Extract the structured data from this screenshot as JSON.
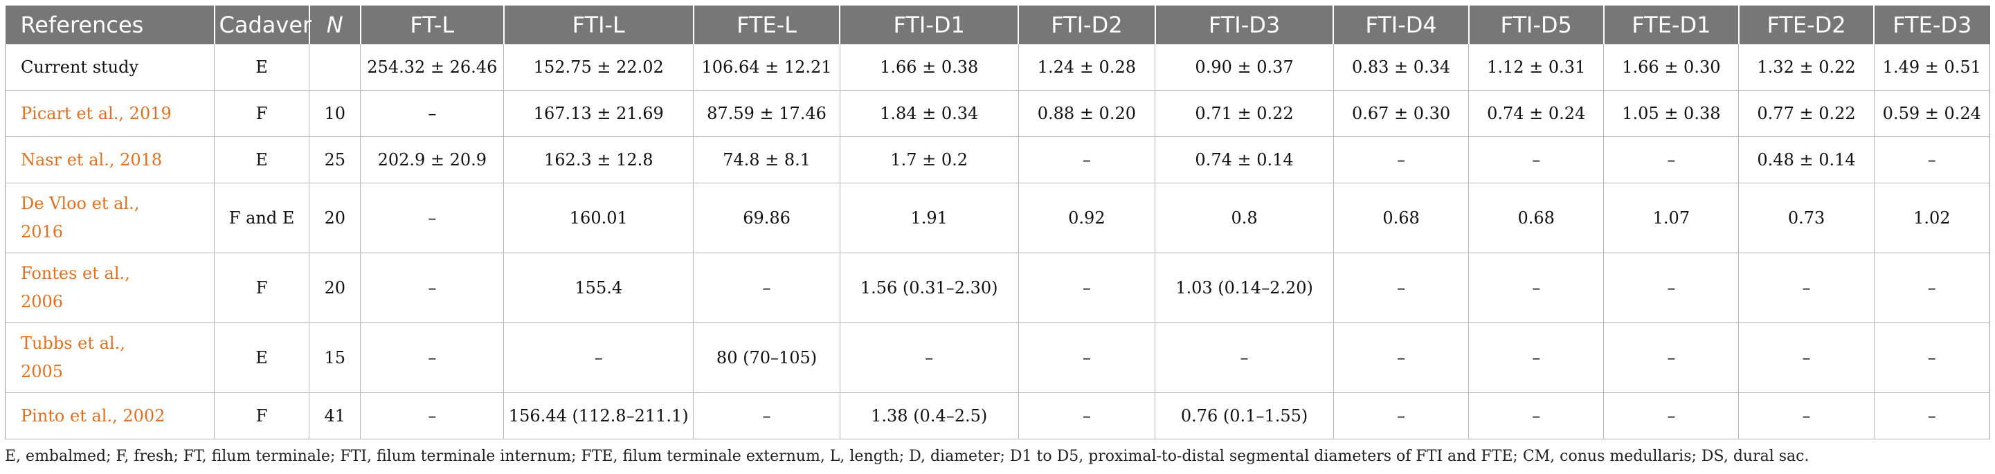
{
  "table": {
    "headers": [
      "References",
      "Cadaver",
      "N",
      "FT-L",
      "FTI-L",
      "FTE-L",
      "FTI-D1",
      "FTI-D2",
      "FTI-D3",
      "FTI-D4",
      "FTI-D5",
      "FTE-D1",
      "FTE-D2",
      "FTE-D3"
    ],
    "rows": [
      {
        "ref_author": "Current study",
        "ref_year": "",
        "ref_linked": false,
        "layout": "single",
        "cells": [
          "E",
          "",
          "254.32 ± 26.46",
          "152.75 ± 22.02",
          "106.64 ± 12.21",
          "1.66 ± 0.38",
          "1.24 ± 0.28",
          "0.90 ± 0.37",
          "0.83 ± 0.34",
          "1.12 ± 0.31",
          "1.66 ± 0.30",
          "1.32 ± 0.22",
          "1.49 ± 0.51"
        ]
      },
      {
        "ref_author": "Picart et al., ",
        "ref_year": "2019",
        "ref_linked": true,
        "layout": "single",
        "cells": [
          "F",
          "10",
          "–",
          "167.13 ± 21.69",
          "87.59 ± 17.46",
          "1.84 ± 0.34",
          "0.88 ± 0.20",
          "0.71 ± 0.22",
          "0.67 ± 0.30",
          "0.74 ± 0.24",
          "1.05 ± 0.38",
          "0.77 ± 0.22",
          "0.59 ± 0.24"
        ]
      },
      {
        "ref_author": "Nasr et al., ",
        "ref_year": "2018",
        "ref_linked": true,
        "layout": "single",
        "cells": [
          "E",
          "25",
          "202.9 ± 20.9",
          "162.3 ± 12.8",
          "74.8 ± 8.1",
          "1.7 ± 0.2",
          "–",
          "0.74 ± 0.14",
          "–",
          "–",
          "–",
          "0.48 ± 0.14",
          "–"
        ]
      },
      {
        "ref_author": "De Vloo et al., ",
        "ref_year": "2016",
        "ref_linked": true,
        "layout": "double",
        "cells": [
          "F and E",
          "20",
          "–",
          "160.01",
          "69.86",
          "1.91",
          "0.92",
          "0.8",
          "0.68",
          "0.68",
          "1.07",
          "0.73",
          "1.02"
        ]
      },
      {
        "ref_author": "Fontes et al., ",
        "ref_year": "2006",
        "ref_linked": true,
        "layout": "double",
        "cells": [
          "F",
          "20",
          "–",
          "155.4",
          "–",
          "1.56 (0.31–2.30)",
          "–",
          "1.03 (0.14–2.20)",
          "–",
          "–",
          "–",
          "–",
          "–"
        ]
      },
      {
        "ref_author": "Tubbs et al., ",
        "ref_year": "2005",
        "ref_linked": true,
        "layout": "double",
        "cells": [
          "E",
          "15",
          "–",
          "–",
          "80 (70–105)",
          "–",
          "–",
          "–",
          "–",
          "–",
          "–",
          "–",
          "–"
        ]
      },
      {
        "ref_author": "Pinto et al., ",
        "ref_year": "2002",
        "ref_linked": true,
        "layout": "single",
        "cells": [
          "F",
          "41",
          "–",
          "156.44 (112.8–211.1)",
          "–",
          "1.38 (0.4–2.5)",
          "–",
          "0.76 (0.1–1.55)",
          "–",
          "–",
          "–",
          "–",
          "–"
        ]
      }
    ]
  },
  "footnote": "E, embalmed; F, fresh; FT, filum terminale; FTI, filum terminale internum; FTE, filum terminale externum, L, length; D, diameter; D1 to D5, proximal-to-distal segmental diameters of FTI and FTE; CM, conus medullaris; DS, dural sac.",
  "colors": {
    "header_bg": "#777777",
    "header_text": "#ffffff",
    "link": "#e0701f",
    "grid": "#b5b5b5"
  }
}
